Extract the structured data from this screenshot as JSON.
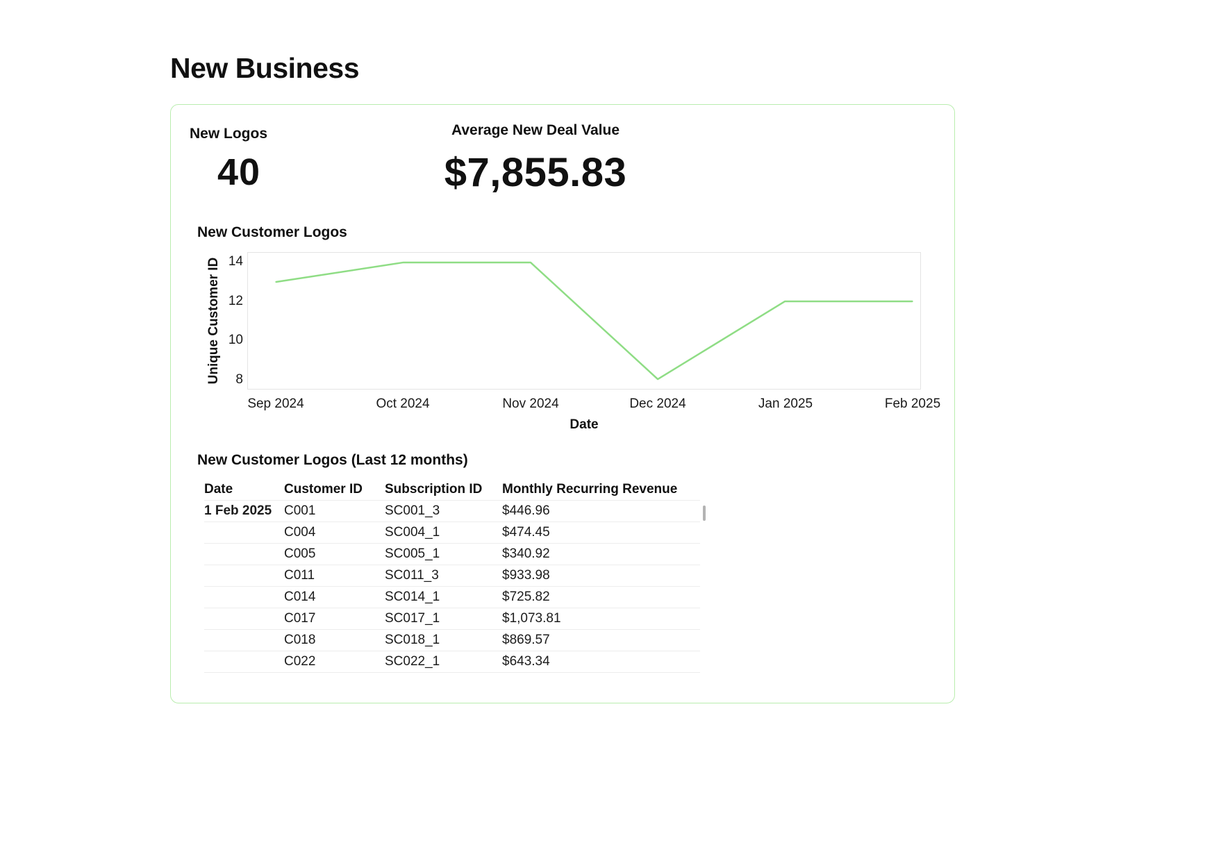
{
  "page": {
    "title": "New Business"
  },
  "colors": {
    "card_border": "#b9edae",
    "line": "#8fdd85",
    "plot_border": "#e4e4e4",
    "row_border": "#ededed"
  },
  "kpis": {
    "new_logos": {
      "label": "New Logos",
      "value": "40"
    },
    "avg_new_deal": {
      "label": "Average New Deal Value",
      "value": "$7,855.83"
    }
  },
  "chart": {
    "title": "New Customer Logos"
  },
  "chart_data": {
    "type": "line",
    "title": "New Customer Logos",
    "x": [
      "Sep 2024",
      "Oct 2024",
      "Nov 2024",
      "Dec 2024",
      "Jan 2025",
      "Feb 2025"
    ],
    "values": [
      13,
      14,
      14,
      8,
      12,
      12
    ],
    "xlabel": "Date",
    "ylabel": "Unique Customer ID",
    "yticks": [
      8,
      10,
      12,
      14
    ],
    "ylim": [
      7.5,
      14.5
    ],
    "line_color": "#8fdd85",
    "grid": false,
    "legend": false
  },
  "table": {
    "title": "New Customer Logos (Last 12 months)",
    "columns": [
      "Date",
      "Customer ID",
      "Subscription ID",
      "Monthly Recurring Revenue"
    ],
    "rows": [
      {
        "date": "1 Feb 2025",
        "customer_id": "C001",
        "subscription_id": "SC001_3",
        "mrr": "$446.96"
      },
      {
        "date": "",
        "customer_id": "C004",
        "subscription_id": "SC004_1",
        "mrr": "$474.45"
      },
      {
        "date": "",
        "customer_id": "C005",
        "subscription_id": "SC005_1",
        "mrr": "$340.92"
      },
      {
        "date": "",
        "customer_id": "C011",
        "subscription_id": "SC011_3",
        "mrr": "$933.98"
      },
      {
        "date": "",
        "customer_id": "C014",
        "subscription_id": "SC014_1",
        "mrr": "$725.82"
      },
      {
        "date": "",
        "customer_id": "C017",
        "subscription_id": "SC017_1",
        "mrr": "$1,073.81"
      },
      {
        "date": "",
        "customer_id": "C018",
        "subscription_id": "SC018_1",
        "mrr": "$869.57"
      },
      {
        "date": "",
        "customer_id": "C022",
        "subscription_id": "SC022_1",
        "mrr": "$643.34"
      }
    ]
  }
}
